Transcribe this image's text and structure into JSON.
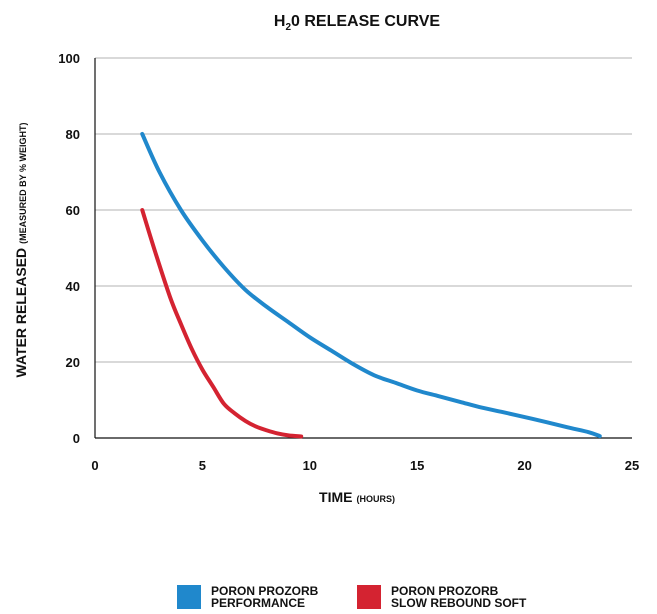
{
  "chart_data": {
    "type": "line",
    "title_main": "H",
    "title_sub": "2",
    "title_rest": "0 RELEASE CURVE",
    "xlabel_main": "TIME",
    "xlabel_sub": "(HOURS)",
    "ylabel_main": "WATER RELEASED",
    "ylabel_sub": "(MEASURED BY % WEIGHT)",
    "xlim": [
      0,
      25
    ],
    "ylim": [
      0,
      100
    ],
    "x_ticks": [
      0,
      5,
      10,
      15,
      20,
      25
    ],
    "y_ticks": [
      0,
      20,
      40,
      60,
      80,
      100
    ],
    "grid": "horizontal",
    "legend_position": "bottom",
    "series": [
      {
        "name_line1": "PORON PROZORB",
        "name_line2": "PERFORMANCE",
        "color": "#2088cc",
        "x": [
          2.2,
          3,
          4,
          5,
          6,
          7,
          8,
          9,
          10,
          11,
          12,
          13,
          14,
          15,
          16,
          17,
          18,
          19,
          20,
          21,
          22,
          23,
          23.5
        ],
        "y": [
          80,
          70,
          60,
          52,
          45,
          39,
          34.5,
          30.5,
          26.5,
          23,
          19.5,
          16.5,
          14.5,
          12.5,
          11,
          9.5,
          8,
          6.8,
          5.5,
          4.2,
          2.8,
          1.5,
          0.5
        ]
      },
      {
        "name_line1": "PORON PROZORB",
        "name_line2": "SLOW REBOUND SOFT",
        "color": "#d42331",
        "x": [
          2.2,
          2.8,
          3.5,
          4,
          4.5,
          5,
          5.5,
          6,
          6.5,
          7,
          7.5,
          8,
          8.5,
          9,
          9.6
        ],
        "y": [
          60,
          49,
          37,
          30,
          23.5,
          18,
          13.5,
          9,
          6.5,
          4.5,
          3,
          2,
          1.2,
          0.7,
          0.4
        ]
      }
    ]
  }
}
